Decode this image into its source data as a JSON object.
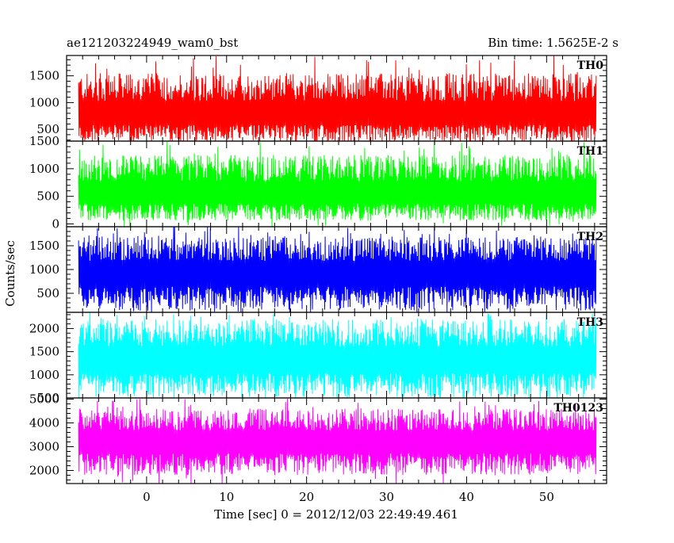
{
  "chart_data": {
    "type": "line",
    "title_left": "ae121203224949_wam0_bst",
    "title_right": "Bin time: 1.5625E-2 s",
    "xlabel": "Time [sec] 0 = 2012/12/03 22:49:49.461",
    "ylabel": "Counts/sec",
    "xlim": [
      -10,
      57.5
    ],
    "x_data_range": [
      -8.5,
      56.2
    ],
    "xticks": [
      0,
      10,
      20,
      30,
      40,
      50
    ],
    "x_minor_step": 2,
    "grid": false,
    "legend": "none",
    "panels": [
      {
        "name": "TH0",
        "color": "#ff0000",
        "ylim": [
          280,
          1880
        ],
        "yticks": [
          500,
          1000,
          1500
        ],
        "y_minor_step": 100,
        "mean": 750,
        "band_low": 260,
        "band_high": 1550,
        "spike_max": 1880
      },
      {
        "name": "TH1",
        "color": "#00ff00",
        "ylim": [
          -50,
          1500
        ],
        "yticks": [
          0,
          500,
          1000,
          1500
        ],
        "y_minor_step": 100,
        "mean": 520,
        "band_low": 60,
        "band_high": 1250,
        "spike_max": 1500
      },
      {
        "name": "TH2",
        "color": "#0000ff",
        "ylim": [
          100,
          1900
        ],
        "yticks": [
          500,
          1000,
          1500
        ],
        "y_minor_step": 100,
        "mean": 900,
        "band_low": 150,
        "band_high": 1700,
        "spike_max": 1900
      },
      {
        "name": "TH3",
        "color": "#00ffff",
        "ylim": [
          500,
          2350
        ],
        "yticks": [
          500,
          1000,
          1500,
          2000
        ],
        "y_minor_step": 100,
        "mean": 1300,
        "band_low": 520,
        "band_high": 2200,
        "spike_max": 2350
      },
      {
        "name": "TH0123",
        "color": "#ff00ff",
        "ylim": [
          1450,
          5050
        ],
        "yticks": [
          2000,
          3000,
          4000,
          5000
        ],
        "y_minor_step": 200,
        "mean": 3200,
        "band_low": 1800,
        "band_high": 4600,
        "spike_max": 5050
      }
    ]
  }
}
